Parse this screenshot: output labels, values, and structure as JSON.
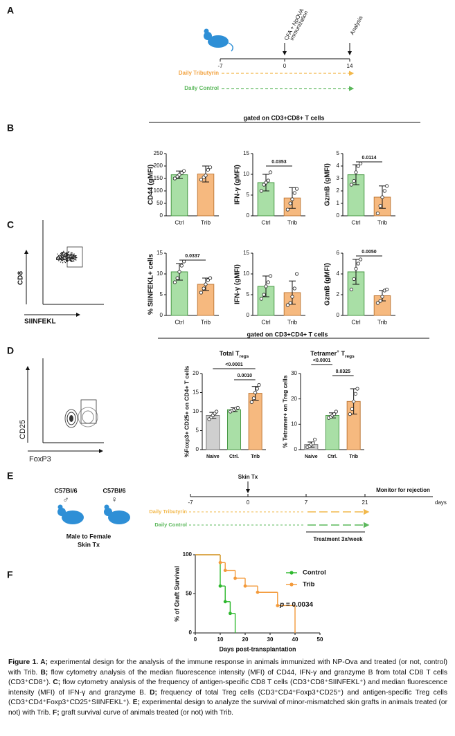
{
  "panel_labels": [
    "A",
    "B",
    "C",
    "D",
    "E",
    "F"
  ],
  "timeline_a": {
    "ticks": [
      "-7",
      "0",
      "14"
    ],
    "events": [
      "CFA + NpOVA",
      "immunization",
      "Analysis"
    ],
    "treatments": [
      "Daily Tributyrin",
      "Daily Control"
    ]
  },
  "headers": [
    "gated on CD3+CD8+ T cells",
    "gated on CD3+CD4+ T cells"
  ],
  "flow": [
    {
      "y_label": "CD8",
      "x_label": "SIINFEKL"
    },
    {
      "y_label": "CD25",
      "x_label": "FoxP3"
    }
  ],
  "timeline_e": {
    "strains": [
      "C57Bl/6",
      "C57Bl/6"
    ],
    "sexes": [
      "♂",
      "♀"
    ],
    "model": [
      "Male to Female",
      "Skin Tx"
    ],
    "event": "Skin Tx",
    "monitor": "Monitor  for rejection",
    "ticks": [
      "-7",
      "0",
      "7",
      "21"
    ],
    "unit": "days",
    "treatments": [
      "Daily Tributyrin",
      "Daily Control"
    ],
    "schedule": "Treatment 3x/week"
  },
  "chart_data": [
    {
      "type": "bar",
      "y_label": "CD44  (gMFI)",
      "categories": [
        "Ctrl",
        "Trib"
      ],
      "colors": [
        "#a9dfa6",
        "#f6b97f"
      ],
      "values": [
        165,
        168
      ],
      "errors": [
        15,
        32
      ],
      "points": [
        [
          150,
          158,
          165,
          172,
          180
        ],
        [
          145,
          155,
          162,
          185,
          195
        ]
      ],
      "ylim": [
        0,
        250
      ],
      "yticks": [
        0,
        50,
        100,
        150,
        200,
        250
      ],
      "significance": []
    },
    {
      "type": "bar",
      "y_label": "IFN-γ (gMFI)",
      "categories": [
        "Ctrl",
        "Trib"
      ],
      "colors": [
        "#a9dfa6",
        "#f6b97f"
      ],
      "values": [
        8,
        4.3
      ],
      "errors": [
        2,
        2.5
      ],
      "points": [
        [
          6,
          7.5,
          8,
          8.5,
          10.5
        ],
        [
          1.5,
          3,
          4,
          5.5,
          6.5
        ]
      ],
      "ylim": [
        0,
        15
      ],
      "yticks": [
        0,
        5,
        10,
        15
      ],
      "significance": [
        {
          "between": [
            "Ctrl",
            "Trib"
          ],
          "label": "0.0353"
        }
      ]
    },
    {
      "type": "bar",
      "y_label": "GzmB (gMFI)",
      "categories": [
        "Ctrl",
        "Trib"
      ],
      "colors": [
        "#a9dfa6",
        "#f6b97f"
      ],
      "values": [
        3.3,
        1.5
      ],
      "errors": [
        0.8,
        0.9
      ],
      "points": [
        [
          2.5,
          2.8,
          3.5,
          4,
          4.2
        ],
        [
          0.2,
          0.8,
          1.5,
          2,
          2.4
        ]
      ],
      "ylim": [
        0,
        5
      ],
      "yticks": [
        0,
        1,
        2,
        3,
        4,
        5
      ],
      "significance": [
        {
          "between": [
            "Ctrl",
            "Trib"
          ],
          "label": "0.0114"
        }
      ]
    },
    {
      "type": "bar",
      "y_label": "% SIINFEKL+ cells",
      "categories": [
        "Ctrl",
        "Trib"
      ],
      "colors": [
        "#a9dfa6",
        "#f6b97f"
      ],
      "values": [
        10.5,
        7.5
      ],
      "errors": [
        2,
        1.5
      ],
      "points": [
        [
          8,
          9,
          10.5,
          12,
          13
        ],
        [
          5.5,
          6.5,
          7.5,
          8.5,
          9
        ]
      ],
      "ylim": [
        0,
        15
      ],
      "yticks": [
        0,
        5,
        10,
        15
      ],
      "significance": [
        {
          "between": [
            "Ctrl",
            "Trib"
          ],
          "label": "0.0337"
        }
      ]
    },
    {
      "type": "bar",
      "y_label": "IFN-γ (gMFI)",
      "categories": [
        "Ctrl",
        "Trib"
      ],
      "colors": [
        "#a9dfa6",
        "#f6b97f"
      ],
      "values": [
        7,
        5.5
      ],
      "errors": [
        2.5,
        2.8
      ],
      "points": [
        [
          4,
          5,
          7,
          8,
          9.5
        ],
        [
          2.5,
          3,
          4.5,
          6.5,
          10
        ]
      ],
      "ylim": [
        0,
        15
      ],
      "yticks": [
        0,
        5,
        10,
        15
      ],
      "significance": []
    },
    {
      "type": "bar",
      "y_label": "GzmB (gMFI)",
      "categories": [
        "Ctrl",
        "Trib"
      ],
      "colors": [
        "#a9dfa6",
        "#f6b97f"
      ],
      "values": [
        4.2,
        1.9
      ],
      "errors": [
        1.2,
        0.5
      ],
      "points": [
        [
          2.5,
          3.5,
          4.5,
          5,
          5.4
        ],
        [
          1.2,
          1.4,
          1.8,
          2.4,
          2.5
        ]
      ],
      "ylim": [
        0,
        6
      ],
      "yticks": [
        0,
        2,
        4,
        6
      ],
      "significance": [
        {
          "between": [
            "Ctrl",
            "Trib"
          ],
          "label": "0.0050"
        }
      ]
    },
    {
      "type": "bar",
      "title": [
        "Total T",
        "regs"
      ],
      "y_label": "%Foxp3+ CD25+ on CD4+ T cells",
      "categories": [
        "Naive",
        "Ctrl.",
        "Trib"
      ],
      "colors": [
        "#cfcfcf",
        "#a9dfa6",
        "#f6b97f"
      ],
      "values": [
        9,
        10.5,
        14.8
      ],
      "errors": [
        0.8,
        0.5,
        1.8
      ],
      "points": [
        [
          8,
          8.5,
          9,
          9.5,
          10
        ],
        [
          10,
          10.3,
          10.5,
          10.8,
          11
        ],
        [
          12.5,
          13.5,
          15,
          16,
          17
        ]
      ],
      "ylim": [
        0,
        20
      ],
      "yticks": [
        0,
        5,
        10,
        15,
        20
      ],
      "significance": [
        {
          "between": [
            "Naive",
            "Trib"
          ],
          "label": "<0.0001"
        },
        {
          "between": [
            "Ctrl.",
            "Trib"
          ],
          "label": "0.0010"
        }
      ]
    },
    {
      "type": "bar",
      "title": [
        "Tetramer",
        "+",
        " T",
        "regs"
      ],
      "y_label": "% Tetramer+ on Treg cells",
      "categories": [
        "Naive",
        "Ctrl.",
        "Trib"
      ],
      "colors": [
        "#cfcfcf",
        "#a9dfa6",
        "#f6b97f"
      ],
      "values": [
        2,
        13.5,
        19
      ],
      "errors": [
        1,
        1,
        5
      ],
      "points": [
        [
          1,
          1.5,
          2,
          2.5,
          4
        ],
        [
          12.5,
          13,
          13.5,
          14,
          15
        ],
        [
          14,
          16,
          19,
          22,
          24
        ]
      ],
      "ylim": [
        0,
        30
      ],
      "yticks": [
        0,
        10,
        20,
        30
      ],
      "significance": [
        {
          "between": [
            "Naive",
            "Ctrl."
          ],
          "label": "<0.0001"
        },
        {
          "between": [
            "Ctrl.",
            "Trib"
          ],
          "label": "0.0325"
        }
      ]
    },
    {
      "type": "line",
      "y_label": "% of Graft Survival",
      "x_label": "Days post-transplantation",
      "annotation": [
        "p",
        " = 0.0034"
      ],
      "xlim": [
        0,
        50
      ],
      "xticks": [
        0,
        10,
        20,
        30,
        40,
        50
      ],
      "ylim": [
        0,
        100
      ],
      "yticks": [
        0,
        50,
        100
      ],
      "series": [
        {
          "name": "Control",
          "color": "#2eb82e",
          "x": [
            0,
            10,
            12,
            14,
            16
          ],
          "values": [
            100,
            60,
            40,
            25,
            0
          ]
        },
        {
          "name": "Trib",
          "color": "#f39a3a",
          "x": [
            0,
            10,
            12,
            16,
            20,
            25,
            33,
            40
          ],
          "values": [
            100,
            90,
            80,
            70,
            60,
            52,
            35,
            0
          ]
        }
      ]
    }
  ],
  "caption": [
    {
      "text": "Figure 1. A;",
      "bold": true
    },
    {
      "text": " experimental design for the analysis of the immune response in animals immunized with NP-Ova and treated (or not, control) with Trib. ",
      "bold": false
    },
    {
      "text": "B;",
      "bold": true
    },
    {
      "text": " flow cytometry analysis of the median fluorescence intensity (MFI) of CD44, IFN-γ and granzyme B from total CD8 T cells (CD3⁺CD8⁺). ",
      "bold": false
    },
    {
      "text": "C;",
      "bold": true
    },
    {
      "text": " flow cytometry analysis of the frequency of antigen-specific CD8 T cells (CD3⁺CD8⁺SIINFEKL⁺) and median fluorescence intensity (MFI) of IFN-γ and granzyme B. ",
      "bold": false
    },
    {
      "text": "D;",
      "bold": true
    },
    {
      "text": " frequency of total Treg cells (CD3⁺CD4⁺Foxp3⁺CD25⁺) and antigen-specific Treg cells (CD3⁺CD4⁺Foxp3⁺CD25⁺SIINFEKL⁺). ",
      "bold": false
    },
    {
      "text": "E;",
      "bold": true
    },
    {
      "text": " experimental design to analyze the survival of minor-mismatched skin grafts in animals treated (or not) with Trib. ",
      "bold": false
    },
    {
      "text": "F;",
      "bold": true
    },
    {
      "text": " graft survival curve of animals treated (or not) with Trib.",
      "bold": false
    }
  ]
}
